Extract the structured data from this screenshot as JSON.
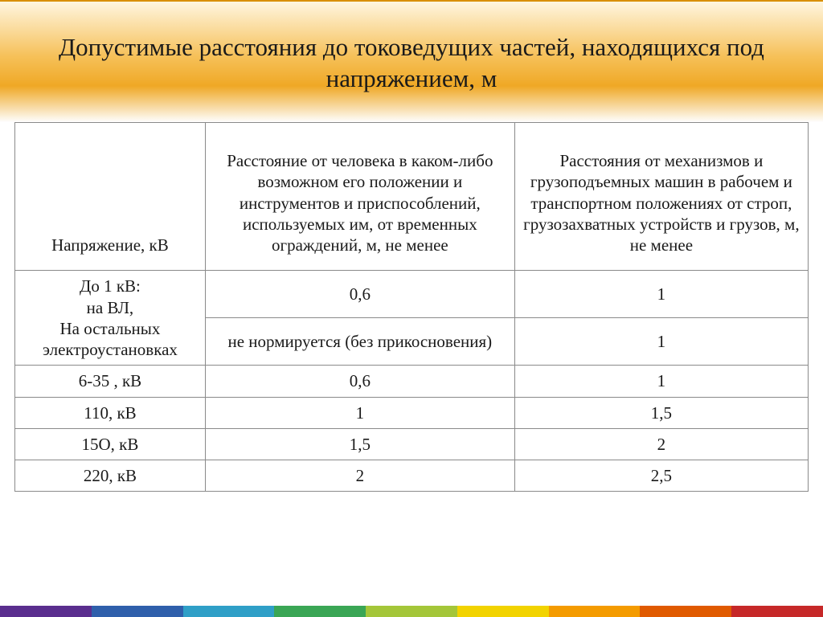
{
  "title": "Допустимые расстояния до токоведущих частей, находящихся под напряжением, м",
  "table": {
    "type": "table",
    "columns": [
      {
        "label": "Напряжение, кВ",
        "align": "center"
      },
      {
        "label": "Расстояние от человека в каком-либо возможном его положении и инструментов и приспособлений, используемых им, от временных ограждений, м, не менее",
        "align": "center"
      },
      {
        "label": "Расстояния от механизмов и грузоподъемных машин в рабочем и транспортном положениях от строп, грузозахватных устройств и грузов, м, не менее",
        "align": "center"
      }
    ],
    "row_group_1": {
      "voltage_label": "До 1 кВ:\nна ВЛ,\nНа остальных электроустановках",
      "r1_col1": "0,6",
      "r1_col2": "1",
      "r2_col1": "не нормируется (без прикосновения)",
      "r2_col2": "1"
    },
    "rows": [
      {
        "voltage": "6-35 , кВ",
        "human": "0,6",
        "machine": "1"
      },
      {
        "voltage": "110, кВ",
        "human": "1",
        "machine": "1,5"
      },
      {
        "voltage": "15О, кВ",
        "human": "1,5",
        "machine": "2"
      },
      {
        "voltage": "220, кВ",
        "human": "2",
        "machine": "2,5"
      }
    ],
    "border_color": "#8a8a8a",
    "text_color": "#1a1a1a",
    "fontsize_body": 21,
    "fontsize_title": 31
  },
  "header_gradient": [
    "#fff6e0",
    "#f6c15a",
    "#efa825",
    "#fefefe"
  ],
  "footer_colors": [
    "#5a2e8e",
    "#2f5fab",
    "#2f9fc7",
    "#3aa655",
    "#a4c639",
    "#f2d300",
    "#f49b00",
    "#e05a00",
    "#c62828"
  ]
}
